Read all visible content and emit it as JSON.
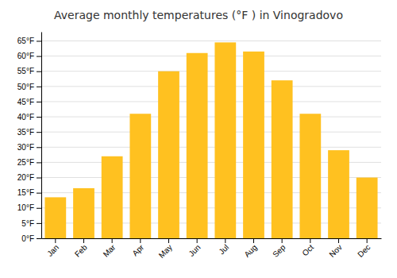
{
  "chart_data": {
    "type": "bar",
    "title": "Average monthly temperatures (°F ) in Vinogradovo",
    "categories": [
      "Jan",
      "Feb",
      "Mar",
      "Apr",
      "May",
      "Jun",
      "Jul",
      "Aug",
      "Sep",
      "Oct",
      "Nov",
      "Dec"
    ],
    "values": [
      13.5,
      16.5,
      27,
      41,
      55,
      61,
      64.5,
      61.5,
      52,
      41,
      29,
      20
    ],
    "color": "#FFC120",
    "ylim": [
      0,
      68
    ],
    "yticks": [
      {
        "value": 0,
        "label": "0°F"
      },
      {
        "value": 5,
        "label": "5°F"
      },
      {
        "value": 10,
        "label": "10°F"
      },
      {
        "value": 15,
        "label": "15°F"
      },
      {
        "value": 20,
        "label": "20°F"
      },
      {
        "value": 25,
        "label": "25°F"
      },
      {
        "value": 30,
        "label": "30°F"
      },
      {
        "value": 35,
        "label": "35°F"
      },
      {
        "value": 40,
        "label": "40°F"
      },
      {
        "value": 45,
        "label": "45°F"
      },
      {
        "value": 50,
        "label": "50°F"
      },
      {
        "value": 55,
        "label": "55°F"
      },
      {
        "value": 60,
        "label": "60°F"
      },
      {
        "value": 65,
        "label": "65°F"
      }
    ],
    "grid": true
  }
}
